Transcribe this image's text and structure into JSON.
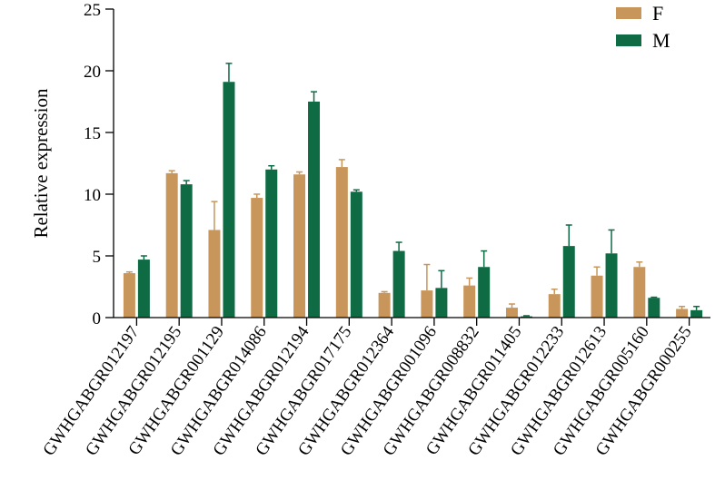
{
  "chart_data": {
    "type": "bar",
    "title": "",
    "xlabel": "",
    "ylabel": "Relative expression",
    "ylim": [
      0,
      25
    ],
    "yticks": [
      0,
      5,
      10,
      15,
      20,
      25
    ],
    "grid": false,
    "legend_position": "top-right",
    "categories": [
      "GWHGABGR012197",
      "GWHGABGR012195",
      "GWHGABGR001129",
      "GWHGABGR014086",
      "GWHGABGR012194",
      "GWHGABGR017175",
      "GWHGABGR012364",
      "GWHGABGR001096",
      "GWHGABGR008832",
      "GWHGABGR011405",
      "GWHGABGR012233",
      "GWHGABGR012613",
      "GWHGABGR005160",
      "GWHGABGR000255"
    ],
    "series": [
      {
        "name": "F",
        "color": "#C8965A",
        "values": [
          3.6,
          11.7,
          7.1,
          9.7,
          11.6,
          12.2,
          2.0,
          2.2,
          2.6,
          0.8,
          1.9,
          3.4,
          4.1,
          0.7
        ],
        "errors": [
          0.1,
          0.2,
          2.3,
          0.3,
          0.2,
          0.6,
          0.1,
          2.1,
          0.6,
          0.3,
          0.4,
          0.7,
          0.4,
          0.2
        ]
      },
      {
        "name": "M",
        "color": "#0E6B44",
        "values": [
          4.7,
          10.8,
          19.1,
          12.0,
          17.5,
          10.2,
          5.4,
          2.4,
          4.1,
          0.1,
          5.8,
          5.2,
          1.6,
          0.6
        ],
        "errors": [
          0.3,
          0.3,
          1.5,
          0.3,
          0.8,
          0.15,
          0.7,
          1.4,
          1.3,
          0.05,
          1.7,
          1.9,
          0.05,
          0.3
        ]
      }
    ]
  }
}
